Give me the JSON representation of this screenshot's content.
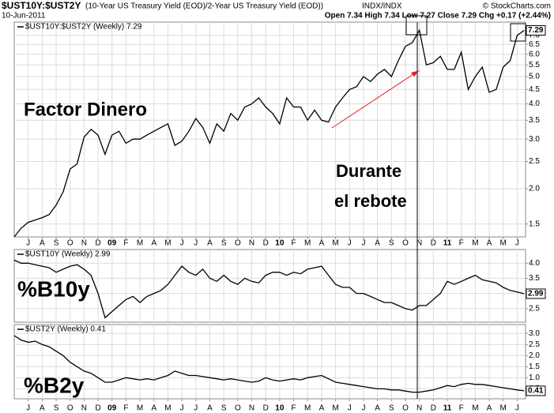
{
  "header": {
    "symbol": "$UST10Y:$UST2Y",
    "description": "(10-Year US Treasury Yield (EOD)/2-Year US Treasury Yield (EOD))",
    "exchange": "INDX/INDX",
    "source": "© StockCharts.com",
    "date": "10-Jun-2011",
    "quote": "Open 7.34  High 7.34  Low 7.27  Close 7.29  Chg +0.17 (+2.44%)"
  },
  "chart_data": [
    {
      "type": "line",
      "log": true,
      "grid": true,
      "annotations": [
        "Factor Dinero",
        "Durante",
        "el rebote"
      ],
      "x": [
        -1,
        -0.5,
        0,
        0.5,
        1,
        1.5,
        2,
        2.5,
        3,
        3.5,
        4,
        4.5,
        5,
        5.5,
        6,
        6.5,
        7,
        7.5,
        8,
        8.5,
        9,
        9.5,
        10,
        10.5,
        11,
        11.5,
        12,
        12.5,
        13,
        13.5,
        14,
        14.5,
        15,
        15.5,
        16,
        16.5,
        17,
        17.5,
        18,
        18.5,
        19,
        19.5,
        20,
        20.5,
        21,
        21.5,
        22,
        22.5,
        23,
        23.5,
        24,
        24.5,
        25,
        25.5,
        26,
        26.5,
        27,
        27.5,
        28,
        28.5,
        29,
        29.5,
        30,
        30.5,
        31,
        31.5,
        32,
        32.5,
        33,
        33.5,
        34,
        34.5,
        35,
        35.5
      ],
      "xlim": [
        -1,
        35.6
      ],
      "xticks": [
        {
          "value": 0,
          "label": "J"
        },
        {
          "value": 1,
          "label": "A"
        },
        {
          "value": 2,
          "label": "S"
        },
        {
          "value": 3,
          "label": "O"
        },
        {
          "value": 4,
          "label": "N"
        },
        {
          "value": 5,
          "label": "D"
        },
        {
          "value": 6,
          "label": "09"
        },
        {
          "value": 7,
          "label": "F"
        },
        {
          "value": 8,
          "label": "M"
        },
        {
          "value": 9,
          "label": "A"
        },
        {
          "value": 10,
          "label": "M"
        },
        {
          "value": 11,
          "label": "J"
        },
        {
          "value": 12,
          "label": "J"
        },
        {
          "value": 13,
          "label": "A"
        },
        {
          "value": 14,
          "label": "S"
        },
        {
          "value": 15,
          "label": "O"
        },
        {
          "value": 16,
          "label": "N"
        },
        {
          "value": 17,
          "label": "D"
        },
        {
          "value": 18,
          "label": "10"
        },
        {
          "value": 19,
          "label": "F"
        },
        {
          "value": 20,
          "label": "M"
        },
        {
          "value": 21,
          "label": "A"
        },
        {
          "value": 22,
          "label": "M"
        },
        {
          "value": 23,
          "label": "J"
        },
        {
          "value": 24,
          "label": "J"
        },
        {
          "value": 25,
          "label": "A"
        },
        {
          "value": 26,
          "label": "S"
        },
        {
          "value": 27,
          "label": "O"
        },
        {
          "value": 28,
          "label": "N"
        },
        {
          "value": 29,
          "label": "D"
        },
        {
          "value": 30,
          "label": "11"
        },
        {
          "value": 31,
          "label": "F"
        },
        {
          "value": 32,
          "label": "M"
        },
        {
          "value": 33,
          "label": "A"
        },
        {
          "value": 34,
          "label": "M"
        },
        {
          "value": 35,
          "label": "J"
        }
      ],
      "ylim": [
        1.35,
        7.8
      ],
      "yticks": [
        {
          "value": 7,
          "label": "7.0"
        },
        6.5,
        {
          "value": 6,
          "label": "6.0"
        },
        5.5,
        {
          "value": 5,
          "label": "5.0"
        },
        4.5,
        {
          "value": 4,
          "label": "4.0"
        },
        3.5,
        {
          "value": 3,
          "label": "3.0"
        },
        2.5,
        {
          "value": 2,
          "label": "2.0"
        },
        1.5
      ],
      "series": [
        {
          "name": "$UST10Y:$UST2Y (Weekly) 7.29",
          "color": "#000000",
          "values": [
            1.35,
            1.45,
            1.52,
            1.55,
            1.58,
            1.62,
            1.75,
            1.95,
            2.35,
            2.45,
            3.05,
            3.25,
            3.1,
            2.65,
            3.1,
            3.2,
            2.9,
            3.0,
            3.0,
            3.1,
            3.2,
            3.3,
            3.4,
            2.85,
            2.95,
            3.2,
            3.55,
            3.3,
            2.9,
            3.4,
            3.2,
            3.7,
            3.5,
            3.9,
            4.0,
            4.2,
            3.9,
            3.7,
            3.4,
            4.2,
            3.9,
            3.9,
            3.5,
            3.8,
            3.5,
            3.45,
            3.9,
            4.2,
            4.5,
            4.6,
            5.0,
            4.8,
            5.1,
            5.3,
            5.0,
            5.7,
            6.4,
            6.6,
            7.3,
            5.5,
            5.6,
            5.9,
            5.3,
            5.3,
            6.1,
            4.5,
            5.0,
            5.4,
            4.4,
            4.5,
            5.4,
            5.7,
            7.0,
            7.29
          ]
        }
      ]
    },
    {
      "type": "line",
      "grid": true,
      "annotations": [
        "%B10y"
      ],
      "x": [
        -1,
        -0.5,
        0,
        0.5,
        1,
        1.5,
        2,
        2.5,
        3,
        3.5,
        4,
        4.5,
        5,
        5.5,
        6,
        6.5,
        7,
        7.5,
        8,
        8.5,
        9,
        9.5,
        10,
        10.5,
        11,
        11.5,
        12,
        12.5,
        13,
        13.5,
        14,
        14.5,
        15,
        15.5,
        16,
        16.5,
        17,
        17.5,
        18,
        18.5,
        19,
        19.5,
        20,
        20.5,
        21,
        21.5,
        22,
        22.5,
        23,
        23.5,
        24,
        24.5,
        25,
        25.5,
        26,
        26.5,
        27,
        27.5,
        28,
        28.5,
        29,
        29.5,
        30,
        30.5,
        31,
        31.5,
        32,
        32.5,
        33,
        33.5,
        34,
        34.5,
        35,
        35.5
      ],
      "xlim": [
        -1,
        35.6
      ],
      "ylim": [
        2.05,
        4.45
      ],
      "yticks": [
        {
          "value": 4,
          "label": "4.0"
        },
        3.5,
        {
          "value": 3,
          "label": "3.0"
        },
        2.5
      ],
      "series": [
        {
          "name": "$UST10Y (Weekly) 2.99",
          "color": "#000000",
          "values": [
            4.1,
            4.0,
            4.0,
            3.95,
            3.9,
            3.85,
            3.7,
            3.8,
            3.9,
            3.95,
            3.8,
            3.6,
            3.0,
            2.2,
            2.4,
            2.6,
            2.8,
            2.9,
            2.7,
            2.9,
            3.0,
            3.1,
            3.3,
            3.6,
            3.9,
            3.7,
            3.6,
            3.8,
            3.5,
            3.4,
            3.6,
            3.4,
            3.3,
            3.5,
            3.4,
            3.35,
            3.6,
            3.7,
            3.7,
            3.6,
            3.7,
            3.65,
            3.8,
            3.85,
            3.9,
            3.6,
            3.3,
            3.2,
            3.2,
            3.0,
            3.0,
            2.9,
            2.8,
            2.7,
            2.7,
            2.6,
            2.5,
            2.45,
            2.6,
            2.6,
            2.8,
            3.0,
            3.4,
            3.3,
            3.4,
            3.5,
            3.6,
            3.45,
            3.4,
            3.35,
            3.2,
            3.1,
            3.05,
            2.99
          ]
        }
      ]
    },
    {
      "type": "line",
      "grid": true,
      "annotations": [
        "%B2y"
      ],
      "x": [
        -1,
        -0.5,
        0,
        0.5,
        1,
        1.5,
        2,
        2.5,
        3,
        3.5,
        4,
        4.5,
        5,
        5.5,
        6,
        6.5,
        7,
        7.5,
        8,
        8.5,
        9,
        9.5,
        10,
        10.5,
        11,
        11.5,
        12,
        12.5,
        13,
        13.5,
        14,
        14.5,
        15,
        15.5,
        16,
        16.5,
        17,
        17.5,
        18,
        18.5,
        19,
        19.5,
        20,
        20.5,
        21,
        21.5,
        22,
        22.5,
        23,
        23.5,
        24,
        24.5,
        25,
        25.5,
        26,
        26.5,
        27,
        27.5,
        28,
        28.5,
        29,
        29.5,
        30,
        30.5,
        31,
        31.5,
        32,
        32.5,
        33,
        33.5,
        34,
        34.5,
        35,
        35.5
      ],
      "xlim": [
        -1,
        35.6
      ],
      "ylim": [
        0.05,
        3.4
      ],
      "yticks": [
        {
          "value": 3,
          "label": "3.0"
        },
        2.5,
        {
          "value": 2,
          "label": "2.0"
        },
        1.5,
        {
          "value": 1,
          "label": "1.0"
        },
        0.5
      ],
      "series": [
        {
          "name": "$UST2Y (Weekly) 0.41",
          "color": "#000000",
          "values": [
            2.9,
            2.7,
            2.6,
            2.65,
            2.5,
            2.4,
            2.2,
            2.0,
            1.7,
            1.5,
            1.3,
            1.2,
            1.0,
            0.8,
            0.8,
            0.9,
            1.0,
            0.95,
            0.9,
            0.95,
            0.9,
            1.0,
            1.1,
            1.3,
            1.2,
            1.1,
            1.1,
            1.05,
            1.0,
            0.95,
            0.9,
            0.95,
            0.9,
            0.85,
            0.8,
            0.85,
            1.0,
            0.9,
            0.85,
            0.9,
            0.95,
            0.9,
            1.0,
            1.05,
            1.1,
            0.95,
            0.8,
            0.75,
            0.7,
            0.65,
            0.6,
            0.55,
            0.5,
            0.5,
            0.45,
            0.45,
            0.4,
            0.35,
            0.35,
            0.4,
            0.45,
            0.55,
            0.65,
            0.6,
            0.7,
            0.75,
            0.7,
            0.7,
            0.65,
            0.6,
            0.55,
            0.5,
            0.45,
            0.41
          ]
        }
      ]
    }
  ]
}
